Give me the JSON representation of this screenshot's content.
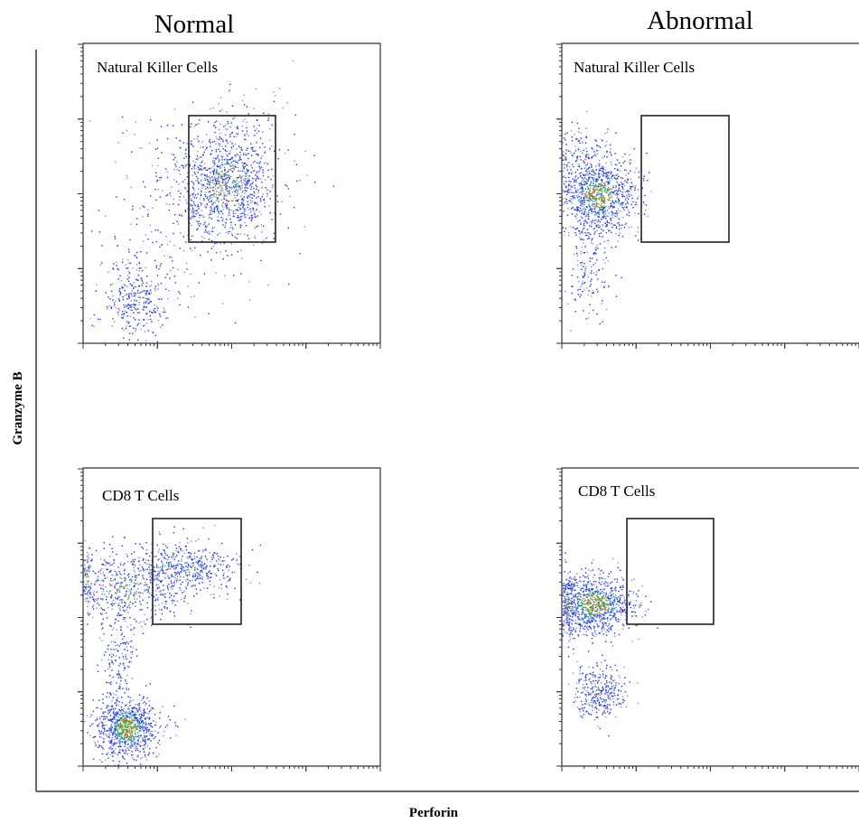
{
  "columns": [
    "Normal",
    "Abnormal"
  ],
  "panels": [
    {
      "label": "Natural Killer Cells"
    },
    {
      "label": "Natural Killer Cells"
    },
    {
      "label": "CD8 T Cells"
    },
    {
      "label": "CD8 T Cells"
    }
  ],
  "y_axis_label": "Granzyme B",
  "x_axis_label": "Perforin"
}
